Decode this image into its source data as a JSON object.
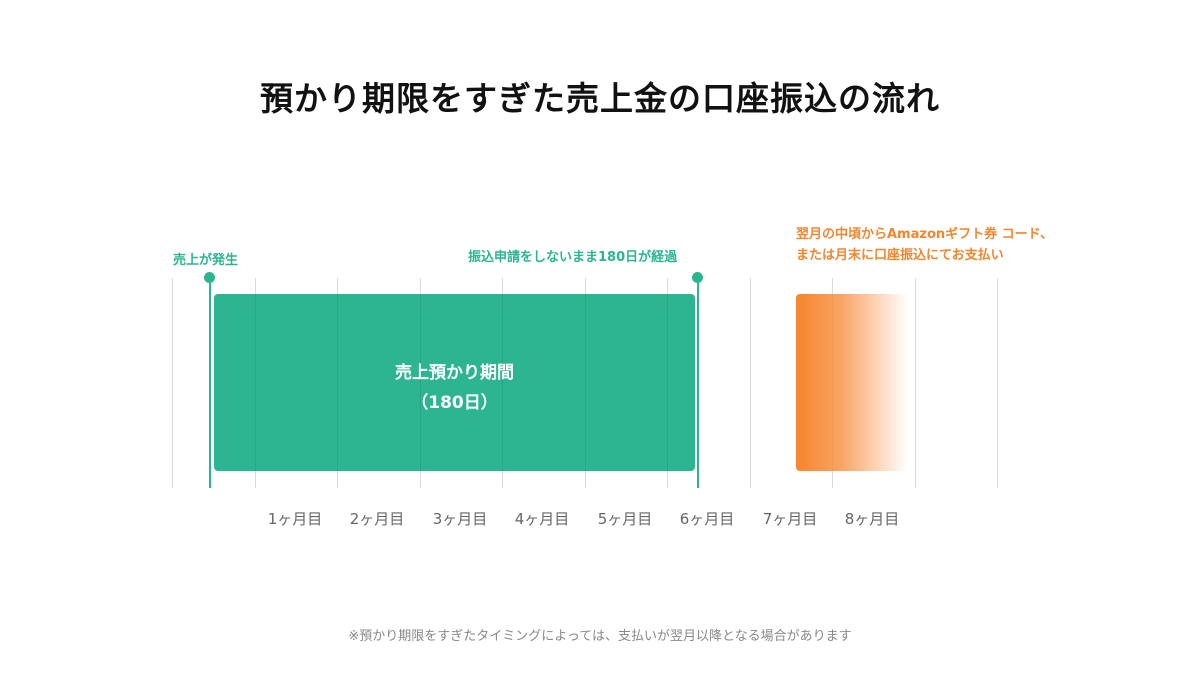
{
  "title": "預かり期限をすぎた売上金の口座振込の流れ",
  "markers": {
    "start_label": "売上が発生",
    "end_label": "振込申請をしないまま180日が経過"
  },
  "holding_period": {
    "label_line1": "売上預かり期間",
    "label_line2": "（180日）",
    "duration_months": 6
  },
  "payout": {
    "label_line1": "翌月の中頃からAmazonギフト券 コード、",
    "label_line2": "または月末に口座振込にてお支払い"
  },
  "months": [
    "1ヶ月目",
    "2ヶ月目",
    "3ヶ月目",
    "4ヶ月目",
    "5ヶ月目",
    "6ヶ月目",
    "7ヶ月目",
    "8ヶ月目"
  ],
  "footnote": "※預かり期限をすぎたタイミングによっては、支払いが翌月以降となる場合があります",
  "colors": {
    "holding": "#2db592",
    "payout": "#f6852f",
    "grid": "#dcdcdc"
  }
}
